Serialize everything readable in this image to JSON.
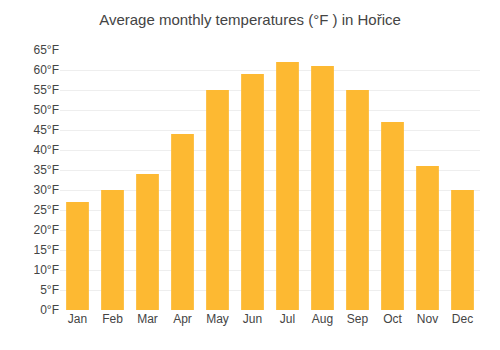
{
  "chart_data": {
    "type": "bar",
    "title": "Average monthly temperatures (°F ) in Hořice",
    "categories": [
      "Jan",
      "Feb",
      "Mar",
      "Apr",
      "May",
      "Jun",
      "Jul",
      "Aug",
      "Sep",
      "Oct",
      "Nov",
      "Dec"
    ],
    "values": [
      27.0,
      30.0,
      34.0,
      44.0,
      55.0,
      59.0,
      62.0,
      61.0,
      55.0,
      47.0,
      36.0,
      30.0
    ],
    "color": "#FDB932",
    "ylim": [
      0,
      65
    ],
    "yticks": [
      {
        "value": 0,
        "label": "0°F"
      },
      {
        "value": 5,
        "label": "5°F"
      },
      {
        "value": 10,
        "label": "10°F"
      },
      {
        "value": 15,
        "label": "15°F"
      },
      {
        "value": 20,
        "label": "20°F"
      },
      {
        "value": 25,
        "label": "25°F"
      },
      {
        "value": 30,
        "label": "30°F"
      },
      {
        "value": 35,
        "label": "35°F"
      },
      {
        "value": 40,
        "label": "40°F"
      },
      {
        "value": 45,
        "label": "45°F"
      },
      {
        "value": 50,
        "label": "50°F"
      },
      {
        "value": 55,
        "label": "55°F"
      },
      {
        "value": 60,
        "label": "60°F"
      },
      {
        "value": 65,
        "label": "65°F"
      }
    ],
    "grid": true
  }
}
